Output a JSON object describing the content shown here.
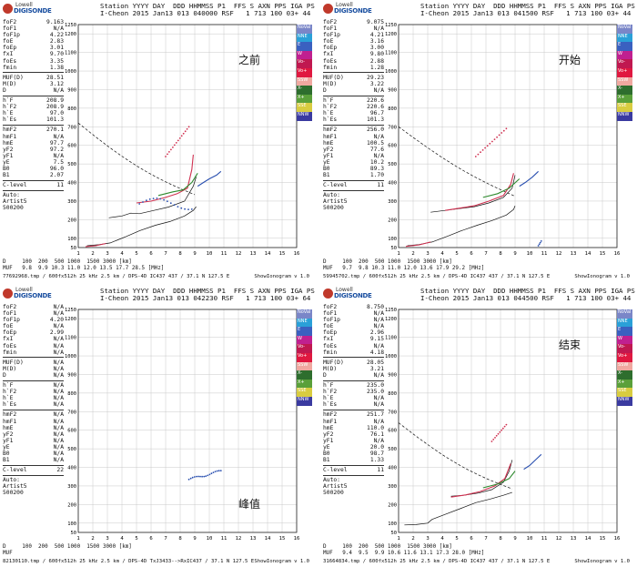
{
  "colors": {
    "curve": "#000000",
    "o_trace": "#d03050",
    "x_trace": "#2a50b0",
    "green_trace": "#2e8a2e",
    "grid": "#c8c8c8"
  },
  "legend": [
    {
      "label": "NoVal",
      "color": "#7a86c8"
    },
    {
      "label": "NNE",
      "color": "#2aa0d8"
    },
    {
      "label": "E",
      "color": "#3a60c0"
    },
    {
      "label": "W",
      "color": "#c02090"
    },
    {
      "label": "Vo-",
      "color": "#c01850"
    },
    {
      "label": "Vo+",
      "color": "#e01840"
    },
    {
      "label": "SSW",
      "color": "#f0a8a0"
    },
    {
      "label": "X-",
      "color": "#2e6e2e"
    },
    {
      "label": "X+",
      "color": "#5aa03a"
    },
    {
      "label": "SSE",
      "color": "#d8cc40"
    },
    {
      "label": "NNW",
      "color": "#3a3aa0"
    }
  ],
  "logo": {
    "line1": "Lowell",
    "line2": "DIGISONDE"
  },
  "y_axis": {
    "ticks": [
      "1250",
      "1200",
      "1100",
      "1000",
      "900",
      "800",
      "700",
      "600",
      "500",
      "400",
      "300",
      "200",
      "100",
      "50"
    ]
  },
  "x_axis": {
    "ticks": [
      "1",
      "2",
      "3",
      "4",
      "5",
      "6",
      "7",
      "8",
      "9",
      "10",
      "11",
      "12",
      "13",
      "14",
      "15",
      "16"
    ]
  },
  "panels": [
    {
      "name": "panel-before",
      "header1": "Station YYYY DAY  DDD HHMMSS P1  FFS S AXN PPS IGA PS",
      "header2": "I-Cheon 2015 Jan13 013 040000 RSF   1 713 100 03+ 44",
      "annotation": "之前",
      "params": [
        [
          "foF2",
          "9.163"
        ],
        [
          "foF1",
          "N/A"
        ],
        [
          "foF1p",
          "4.22"
        ],
        [
          "foE",
          "2.83"
        ],
        [
          "foEp",
          "3.01"
        ],
        [
          "fxI",
          "9.70"
        ],
        [
          "foEs",
          "3.35"
        ],
        [
          "fmin",
          "1.38"
        ]
      ],
      "params2": [
        [
          "MUF(D)",
          "28.51"
        ],
        [
          "M(D)",
          "3.12"
        ],
        [
          "D",
          "N/A"
        ]
      ],
      "params3": [
        [
          "h`F",
          "208.9"
        ],
        [
          "h`F2",
          "208.9"
        ],
        [
          "h`E",
          "97.0"
        ],
        [
          "h`Es",
          "101.3"
        ]
      ],
      "params4": [
        [
          "hmF2",
          "270.1"
        ],
        [
          "hmF1",
          "N/A"
        ],
        [
          "hmE",
          "97.7"
        ],
        [
          "yF2",
          "97.2"
        ],
        [
          "yF1",
          "N/A"
        ],
        [
          "yE",
          "7.5"
        ],
        [
          "B0",
          "96.0"
        ],
        [
          "B1",
          "2.07"
        ]
      ],
      "clevel": [
        "C-level",
        "11"
      ],
      "auto": [
        "Auto:",
        "Artist5",
        "500200"
      ],
      "d_row": "D     100  200  500 1000  1500 3000 [km]",
      "muf_row": "MUF   9.8  9.9 10.3 11.0 12.0 13.5 17.7 28.5 [MHz]",
      "filename": "77692968.tmp / 600fx512h 25 kHz 2.5 km / DPS-4D IC437 437 / 37.1 N 127.5 E",
      "version": "ShowIonogram v 1.0"
    },
    {
      "name": "panel-start",
      "header1": "Station YYYY DAY  DDD HHMMSS P1  FFS S AXN PPS IGA PS",
      "header2": "I-Cheon 2015 Jan13 013 041500 RSF   1 713 100 03+ 44",
      "annotation": "开始",
      "params": [
        [
          "foF2",
          "9.075"
        ],
        [
          "foF1",
          "N/A"
        ],
        [
          "foF1p",
          "4.21"
        ],
        [
          "foE",
          "3.16"
        ],
        [
          "foEp",
          "3.00"
        ],
        [
          "fxI",
          "9.80"
        ],
        [
          "foEs",
          "2.88"
        ],
        [
          "fmin",
          "1.28"
        ]
      ],
      "params2": [
        [
          "MUF(D)",
          "29.23"
        ],
        [
          "M(D)",
          "3.22"
        ],
        [
          "D",
          "N/A"
        ]
      ],
      "params3": [
        [
          "h`F",
          "220.6"
        ],
        [
          "h`F2",
          "220.6"
        ],
        [
          "h`E",
          "96.7"
        ],
        [
          "h`Es",
          "101.3"
        ]
      ],
      "params4": [
        [
          "hmF2",
          "256.0"
        ],
        [
          "hmF1",
          "N/A"
        ],
        [
          "hmE",
          "100.5"
        ],
        [
          "yF2",
          "77.6"
        ],
        [
          "yF1",
          "N/A"
        ],
        [
          "yE",
          "10.2"
        ],
        [
          "B0",
          "89.3"
        ],
        [
          "B1",
          "1.70"
        ]
      ],
      "clevel": [
        "C-level",
        "11"
      ],
      "auto": [
        "Auto:",
        "Artist5",
        "500200"
      ],
      "d_row": "D     100  200  500 1000  1500 3000 [km]",
      "muf_row": "MUF   9.7  9.8 10.3 11.0 12.0 13.6 17.9 29.2 [MHz]",
      "filename": "59945702.tmp / 600fx512h 25 kHz 2.5 km / DPS-4D IC437 437 / 37.1 N 127.5 E",
      "version": "ShowIonogram v 1.0"
    },
    {
      "name": "panel-peak",
      "header1": "Station YYYY DAY  DDD HHMMSS P1  FFS S AXN PPS IGA PS",
      "header2": "I-Cheon 2015 Jan13 013 042230 RSF   1 713 100 03+ 64",
      "annotation": "峰值",
      "params": [
        [
          "foF2",
          "N/A"
        ],
        [
          "foF1",
          "N/A"
        ],
        [
          "foF1p",
          "4.20"
        ],
        [
          "foE",
          "N/A"
        ],
        [
          "foEp",
          "2.99"
        ],
        [
          "fxI",
          "N/A"
        ],
        [
          "foEs",
          "N/A"
        ],
        [
          "fmin",
          "N/A"
        ]
      ],
      "params2": [
        [
          "MUF(D)",
          "N/A"
        ],
        [
          "M(D)",
          "N/A"
        ],
        [
          "D",
          "N/A"
        ]
      ],
      "params3": [
        [
          "h`F",
          "N/A"
        ],
        [
          "h`F2",
          "N/A"
        ],
        [
          "h`E",
          "N/A"
        ],
        [
          "h`Es",
          "N/A"
        ]
      ],
      "params4": [
        [
          "hmF2",
          "N/A"
        ],
        [
          "hmF1",
          "N/A"
        ],
        [
          "hmE",
          "N/A"
        ],
        [
          "yF2",
          "N/A"
        ],
        [
          "yF1",
          "N/A"
        ],
        [
          "yE",
          "N/A"
        ],
        [
          "B0",
          "N/A"
        ],
        [
          "B1",
          "N/A"
        ]
      ],
      "clevel": [
        "C-level",
        "22"
      ],
      "auto": [
        "Auto:",
        "Artist5",
        "500200"
      ],
      "d_row": "D     100  200  500 1000  1500 3000 [km]",
      "muf_row": "MUF",
      "filename": "82130110.tmp / 600fx512h 25 kHz 2.5 km / DPS-4D TxJ3433-->RxIC437 / 37.1 N 127.5 E",
      "version": "ShowIonogram v 1.0"
    },
    {
      "name": "panel-end",
      "header1": "Station YYYY DAY  DDD HHMMSS P1  FFS S AXN PPS IGA PS",
      "header2": "I-Cheon 2015 Jan13 013 044500 RSF   1 713 100 03+ 44",
      "annotation": "结束",
      "params": [
        [
          "foF2",
          "8.750"
        ],
        [
          "foF1",
          "N/A"
        ],
        [
          "foF1p",
          "N/A"
        ],
        [
          "foE",
          "N/A"
        ],
        [
          "foEp",
          "2.96"
        ],
        [
          "fxI",
          "9.15"
        ],
        [
          "foEs",
          "N/A"
        ],
        [
          "fmin",
          "4.18"
        ]
      ],
      "params2": [
        [
          "MUF(D)",
          "28.05"
        ],
        [
          "M(D)",
          "3.21"
        ],
        [
          "D",
          "N/A"
        ]
      ],
      "params3": [
        [
          "h`F",
          "235.0"
        ],
        [
          "h`F2",
          "235.0"
        ],
        [
          "h`E",
          "N/A"
        ],
        [
          "h`Es",
          "N/A"
        ]
      ],
      "params4": [
        [
          "hmF2",
          "251.7"
        ],
        [
          "hmF1",
          "N/A"
        ],
        [
          "hmE",
          "110.0"
        ],
        [
          "yF2",
          "76.1"
        ],
        [
          "yF1",
          "N/A"
        ],
        [
          "yE",
          "20.0"
        ],
        [
          "B0",
          "98.7"
        ],
        [
          "B1",
          "1.33"
        ]
      ],
      "clevel": [
        "C-level",
        "11"
      ],
      "auto": [
        "Auto:",
        "Artist5",
        "500200"
      ],
      "d_row": "D     100  200  500 1000  1500 3000 [km]",
      "muf_row": "MUF   9.4  9.5  9.9 10.6 11.6 13.1 17.3 28.0 [MHz]",
      "filename": "31664834.tmp / 600fx512h 25 kHz 2.5 km / DPS-4D IC437 437 / 37.1 N 127.5 E",
      "version": "ShowIonogram v 1.0"
    }
  ]
}
